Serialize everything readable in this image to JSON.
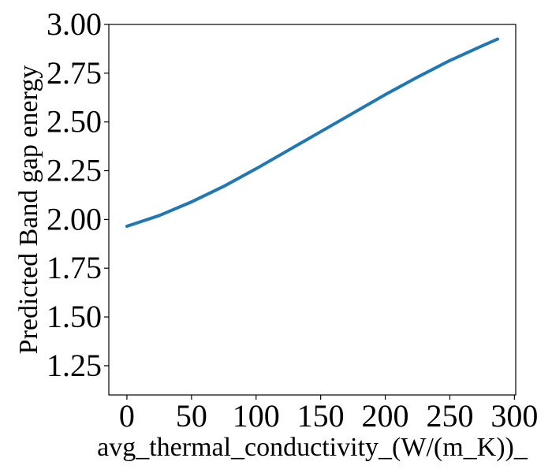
{
  "chart_data": {
    "type": "line",
    "title": "",
    "xlabel": "avg_thermal_conductivity_(W/(m_K))_",
    "ylabel": "Predicted Band gap energy",
    "xlim": [
      -14,
      301
    ],
    "ylim": [
      1.1,
      3.0
    ],
    "xticks": [
      0,
      50,
      100,
      150,
      200,
      250,
      300
    ],
    "xtick_labels": [
      "0",
      "50",
      "100",
      "150",
      "200",
      "250",
      "300"
    ],
    "yticks": [
      1.25,
      1.5,
      1.75,
      2.0,
      2.25,
      2.5,
      2.75,
      3.0
    ],
    "ytick_labels": [
      "1.25",
      "1.50",
      "1.75",
      "2.00",
      "2.25",
      "2.50",
      "2.75",
      "3.00"
    ],
    "grid": false,
    "legend": "none",
    "series": [
      {
        "color": "#1f77b4",
        "x": [
          0,
          25,
          50,
          75,
          100,
          125,
          150,
          175,
          200,
          225,
          250,
          275,
          287
        ],
        "y": [
          1.965,
          2.02,
          2.09,
          2.17,
          2.26,
          2.355,
          2.45,
          2.545,
          2.64,
          2.73,
          2.815,
          2.89,
          2.925
        ]
      }
    ]
  }
}
